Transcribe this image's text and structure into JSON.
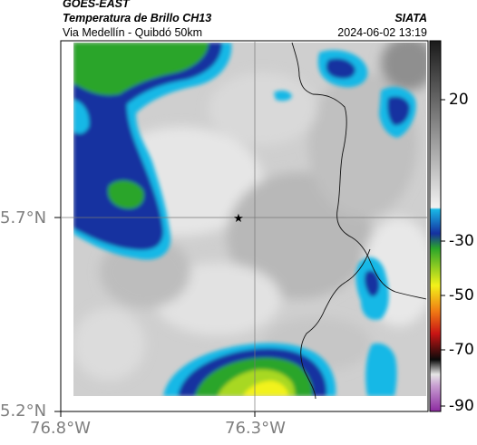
{
  "header": {
    "satellite": "GOES-EAST",
    "product": "Temperatura de Brillo CH13",
    "region": "Via Medellín - Quibdó 50km",
    "org": "SIATA",
    "datetime": "2024-06-02 13:19"
  },
  "map": {
    "lat_ticks": [
      "5.7°N",
      "5.2°N"
    ],
    "lon_ticks": [
      "76.8°W",
      "76.3°W"
    ],
    "marker": "star-icon"
  },
  "colorbar": {
    "labels": [
      "20",
      "-30",
      "-50",
      "-70",
      "-90"
    ],
    "colors": {
      "gray_top": "#1a1a1a",
      "cyan": "#19b8e6",
      "blue": "#1530a0",
      "green": "#2aa52a",
      "yellow": "#f2f21a",
      "orange": "#f07a14",
      "red": "#c81414",
      "black": "#0a0a0a",
      "magenta": "#b450c8"
    }
  }
}
